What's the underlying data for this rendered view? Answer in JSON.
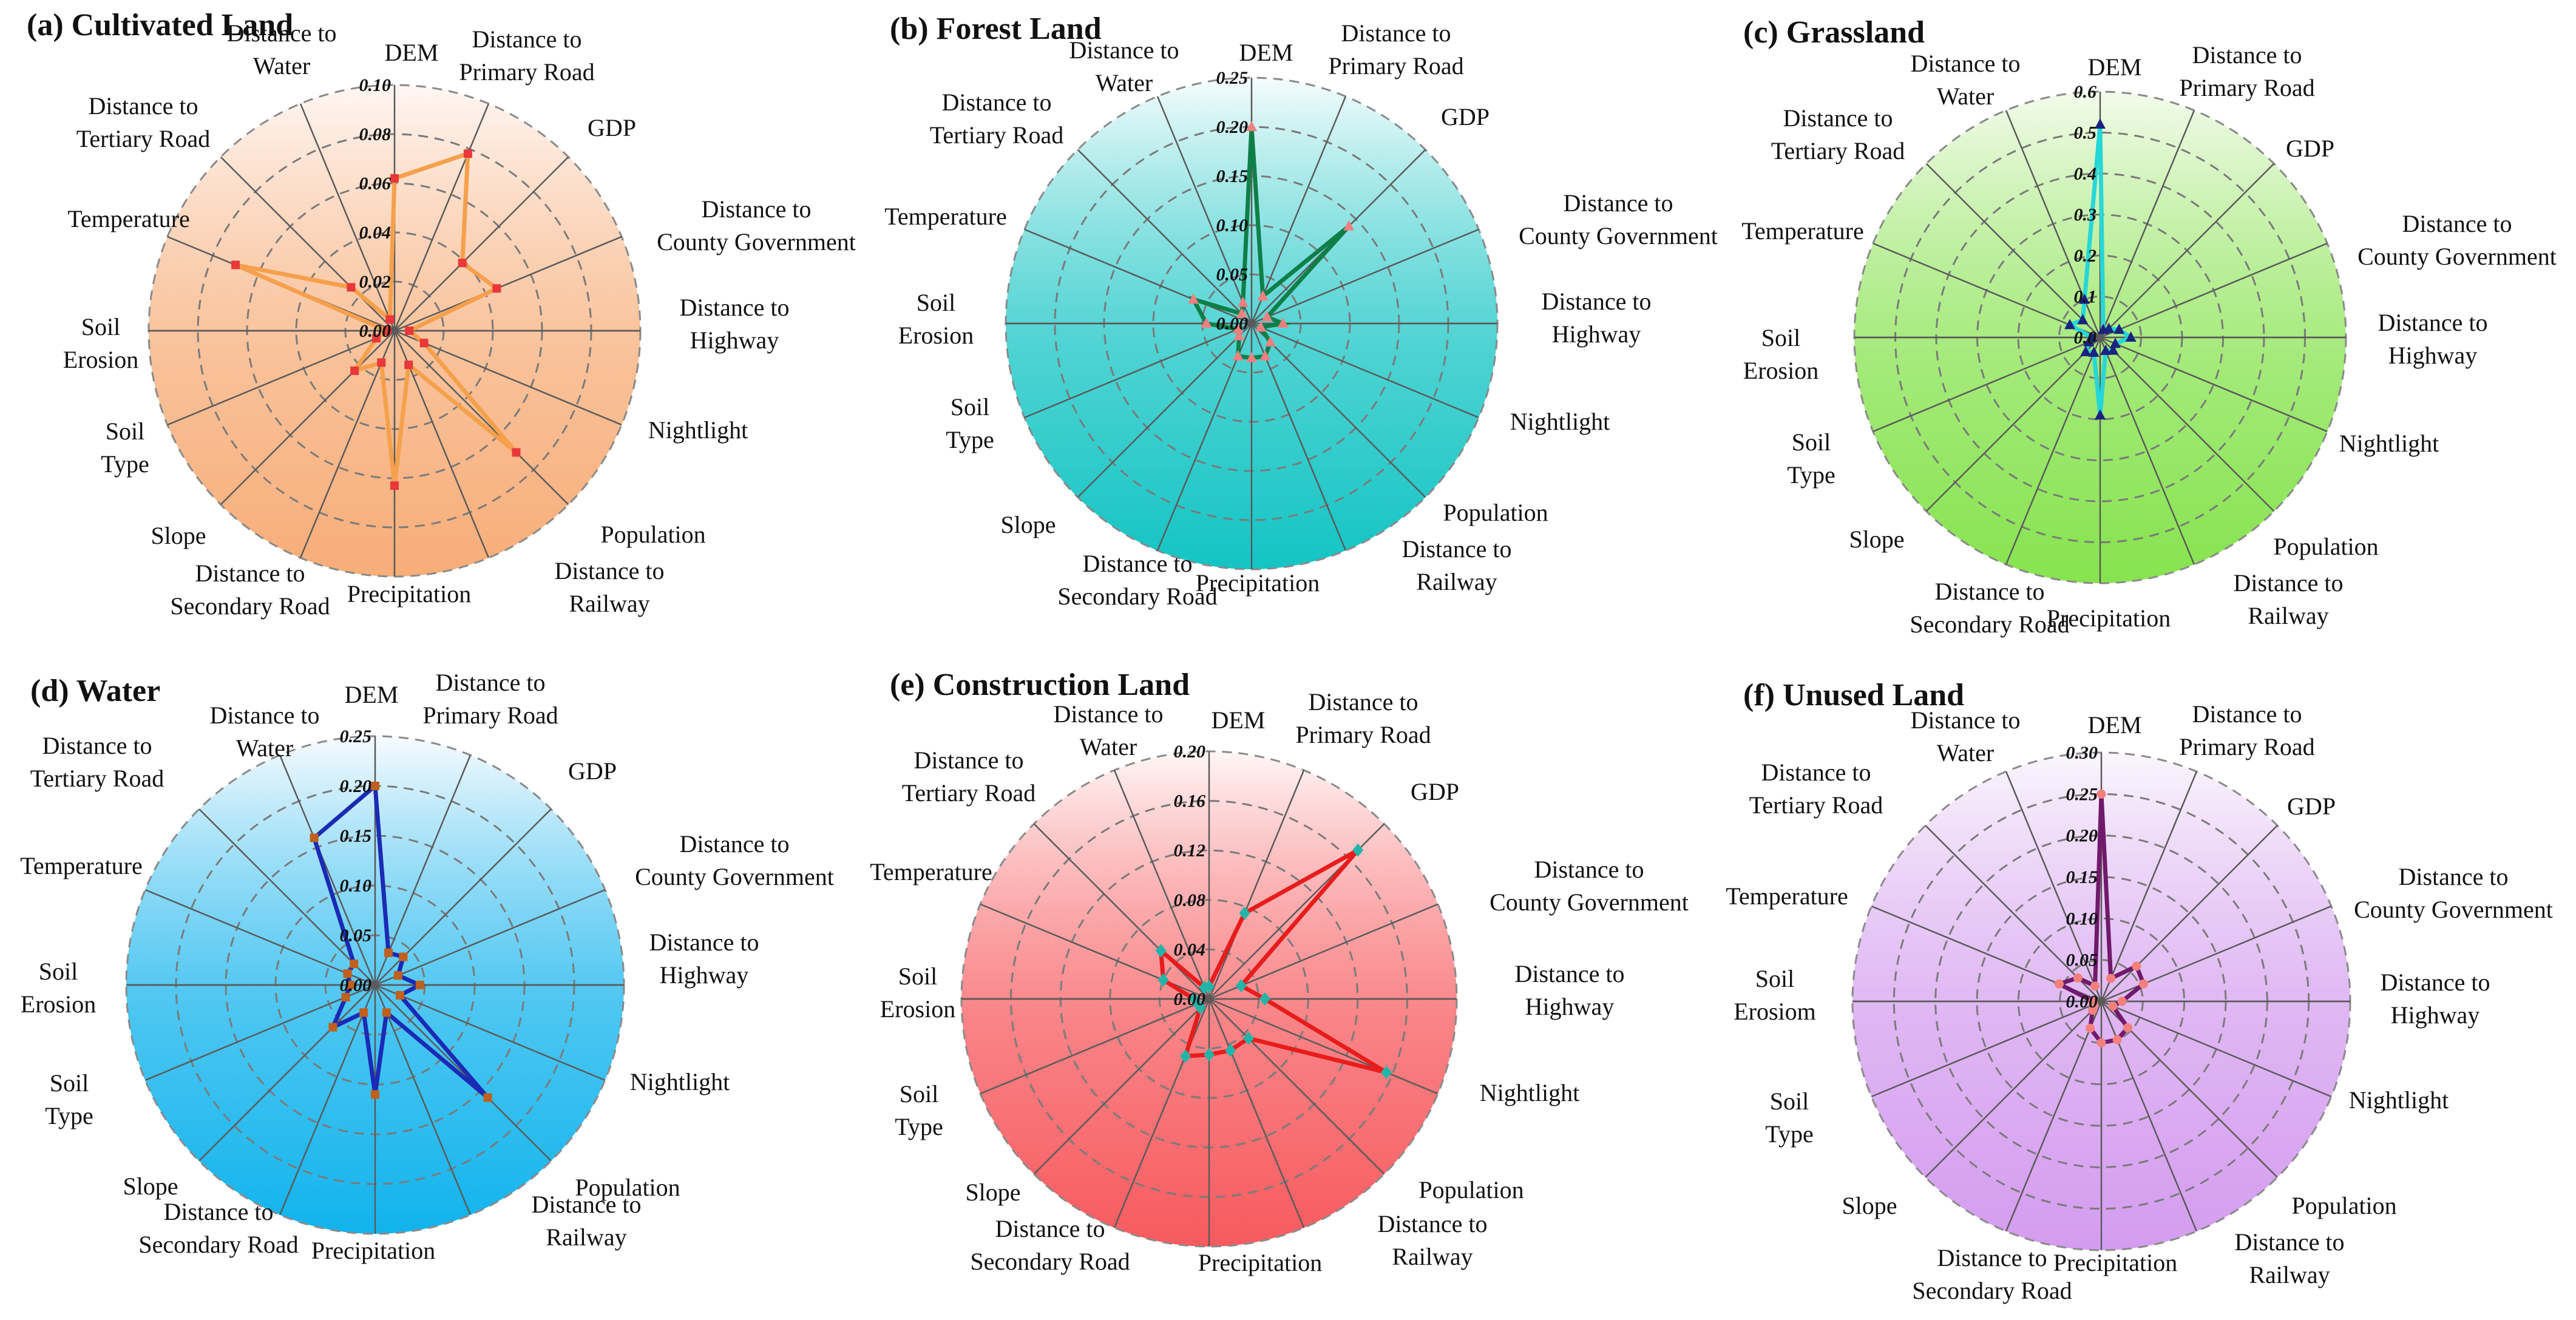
{
  "axes": [
    "DEM",
    "Distance to\nPrimary Road",
    "GDP",
    "Distance to\nCounty Government",
    "Distance to\nHighway",
    "Nightlight",
    "Population",
    "Distance to\nRailway",
    "Precipitation",
    "Distance to\nSecondary Road",
    "Slope",
    "Soil\nType",
    "Soil\nErosion",
    "Temperature",
    "Distance to\nTertiary Road",
    "Distance to\nWater"
  ],
  "chart_data": [
    {
      "type": "radar",
      "title": "(a) Cultivated Land",
      "axis_labels": [
        "DEM",
        "Distance to\nPrimary Road",
        "GDP",
        "Distance to\nCounty Government",
        "Distance to\nHighway",
        "Nightlight",
        "Population",
        "Distance to\nRailway",
        "Precipitation",
        "Distance to\nSecondary Road",
        "Slope",
        "Soil\nType",
        "Soil\nErosion",
        "Temperature",
        "Distance to\nTertiary Road",
        "Distance to\nWater"
      ],
      "ticks": [
        "0.00",
        "0.02",
        "0.04",
        "0.06",
        "0.08",
        "0.10"
      ],
      "rmax": 0.1,
      "values": [
        0.062,
        0.078,
        0.039,
        0.045,
        0.006,
        0.013,
        0.07,
        0.015,
        0.063,
        0.014,
        0.023,
        0.008,
        0.003,
        0.07,
        0.025,
        0.005
      ],
      "line_color": "#f5a04c",
      "marker_color": "#e8383a",
      "marker": "square",
      "bg_top": "#fff7f4",
      "bg_bottom": "#f7ad78"
    },
    {
      "type": "radar",
      "title": "(b) Forest Land",
      "axis_labels": [
        "DEM",
        "Distance to\nPrimary Road",
        "GDP",
        "Distance to\nCounty Government",
        "Distance to\nHighway",
        "Nightlight",
        "Population",
        "Distance to\nRailway",
        "Precipitation",
        "Distance to\nSecondary Road",
        "Slope",
        "Soil\nType",
        "Soil\nErosion",
        "Temperature",
        "Distance to\nTertiary Road",
        "Distance to\nWater"
      ],
      "ticks": [
        "0.00",
        "0.05",
        "0.10",
        "0.15",
        "0.20",
        "0.25"
      ],
      "rmax": 0.25,
      "values": [
        0.2,
        0.03,
        0.14,
        0.017,
        0.032,
        0.01,
        0.027,
        0.036,
        0.035,
        0.036,
        0.018,
        0.015,
        0.046,
        0.064,
        0.014,
        0.023
      ],
      "line_color": "#0f7f48",
      "marker_color": "#f08080",
      "marker": "triangle",
      "bg_top": "#f6fcfc",
      "bg_bottom": "#14c4c4"
    },
    {
      "type": "radar",
      "title": "(c) Grassland",
      "axis_labels": [
        "DEM",
        "Distance to\nPrimary Road",
        "GDP",
        "Distance to\nCounty Government",
        "Distance to\nHighway",
        "Nightlight",
        "Population",
        "Distance to\nRailway",
        "Precipitation",
        "Distance to\nSecondary Road",
        "Slope",
        "Soil\nType",
        "Soil\nErosion",
        "Temperature",
        "Distance to\nTertiary Road",
        "Distance to\nWater"
      ],
      "ticks": [
        "0.0",
        "0.1",
        "0.2",
        "0.3",
        "0.4",
        "0.5",
        "0.6"
      ],
      "rmax": 0.6,
      "values": [
        0.52,
        0.02,
        0.03,
        0.05,
        0.075,
        0.04,
        0.045,
        0.035,
        0.19,
        0.04,
        0.05,
        0.03,
        0.02,
        0.08,
        0.06,
        0.1
      ],
      "line_color": "#26d7d7",
      "marker_color": "#1a237e",
      "marker": "triangle",
      "bg_top": "#f4fbec",
      "bg_bottom": "#86e34e"
    },
    {
      "type": "radar",
      "title": "(d) Water",
      "axis_labels": [
        "DEM",
        "Distance to\nPrimary Road",
        "GDP",
        "Distance to\nCounty Government",
        "Distance to\nHighway",
        "Nightlight",
        "Population",
        "Distance to\nRailway",
        "Precipitation",
        "Distance to\nSecondary Road",
        "Slope",
        "Soil\nType",
        "Soil\nErosion",
        "Temperature",
        "Distance to\nTertiary Road",
        "Distance to\nWater"
      ],
      "ticks": [
        "0.00",
        "0.05",
        "0.10",
        "0.15",
        "0.20",
        "0.25"
      ],
      "rmax": 0.25,
      "values": [
        0.2,
        0.035,
        0.04,
        0.025,
        0.045,
        0.027,
        0.16,
        0.03,
        0.11,
        0.03,
        0.06,
        0.032,
        0.025,
        0.03,
        0.03,
        0.16
      ],
      "line_color": "#1a2bb5",
      "marker_color": "#c0601c",
      "marker": "square",
      "bg_top": "#f8fbfe",
      "bg_bottom": "#11b3ed"
    },
    {
      "type": "radar",
      "title": "(e) Construction Land",
      "axis_labels": [
        "DEM",
        "Distance to\nPrimary Road",
        "GDP",
        "Distance to\nCounty Government",
        "Distance to\nHighway",
        "Nightlight",
        "Population",
        "Distance to\nRailway",
        "Precipitation",
        "Distance to\nSecondary Road",
        "Slope",
        "Soil\nType",
        "Soil\nErosion",
        "Temperature",
        "Distance to\nTertiary Road",
        "Distance to\nWater"
      ],
      "ticks": [
        "0.00",
        "0.04",
        "0.08",
        "0.12",
        "0.16",
        "0.20"
      ],
      "rmax": 0.2,
      "values": [
        0.01,
        0.075,
        0.17,
        0.028,
        0.045,
        0.155,
        0.045,
        0.045,
        0.045,
        0.05,
        0.01,
        0.01,
        0.012,
        0.04,
        0.055,
        0.01
      ],
      "line_color": "#e81c1c",
      "marker_color": "#21b5a8",
      "marker": "diamond",
      "bg_top": "#fff6f6",
      "bg_bottom": "#f75a5e"
    },
    {
      "type": "radar",
      "title": "(f) Unused Land",
      "axis_labels": [
        "DEM",
        "Distance to\nPrimary Road",
        "GDP",
        "Distance to\nCounty Government",
        "Distance to\nHighway",
        "Nightlight",
        "Population",
        "Distance to\nRailway",
        "Precipitation",
        "Distance to\nSecondary Road",
        "Slope",
        "Soil\nType",
        "Soil\nErosiom",
        "Temperature",
        "Distance to\nTertiary Road",
        "Distance to\nWater"
      ],
      "ticks": [
        "0.00",
        "0.05",
        "0.10",
        "0.15",
        "0.20",
        "0.25",
        "0.30"
      ],
      "rmax": 0.3,
      "values": [
        0.25,
        0.03,
        0.06,
        0.055,
        0.025,
        0.015,
        0.045,
        0.05,
        0.05,
        0.035,
        0.015,
        0.01,
        0.01,
        0.055,
        0.04,
        0.02
      ],
      "line_color": "#701a6b",
      "marker_color": "#f2807c",
      "marker": "circle",
      "bg_top": "#faf6fd",
      "bg_bottom": "#d49cef"
    }
  ]
}
